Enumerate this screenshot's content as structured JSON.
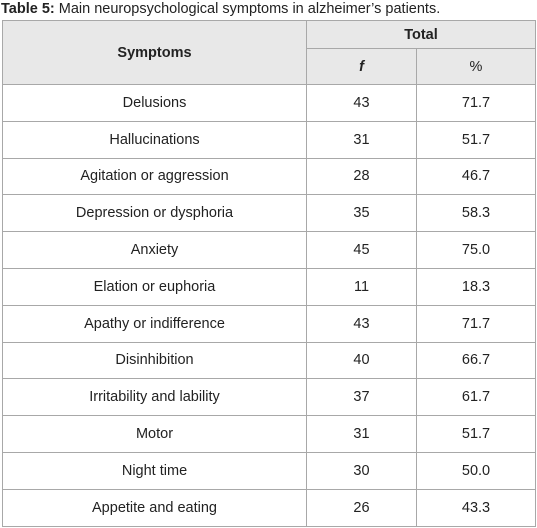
{
  "caption": {
    "label": "Table 5:",
    "text": "Main neuropsychological symptoms in alzheimer’s patients."
  },
  "table": {
    "header": {
      "symptoms": "Symptoms",
      "total": "Total",
      "f": "f",
      "percent": "%"
    },
    "rows": [
      [
        "Delusions",
        "43",
        "71.7"
      ],
      [
        "Hallucinations",
        "31",
        "51.7"
      ],
      [
        "Agitation or aggression",
        "28",
        "46.7"
      ],
      [
        "Depression or dysphoria",
        "35",
        "58.3"
      ],
      [
        "Anxiety",
        "45",
        "75.0"
      ],
      [
        "Elation or euphoria",
        "11",
        "18.3"
      ],
      [
        "Apathy or indifference",
        "43",
        "71.7"
      ],
      [
        "Disinhibition",
        "40",
        "66.7"
      ],
      [
        "Irritability and lability",
        "37",
        "61.7"
      ],
      [
        "Motor",
        "31",
        "51.7"
      ],
      [
        "Night time",
        "30",
        "50.0"
      ],
      [
        "Appetite and eating",
        "26",
        "43.3"
      ]
    ]
  }
}
